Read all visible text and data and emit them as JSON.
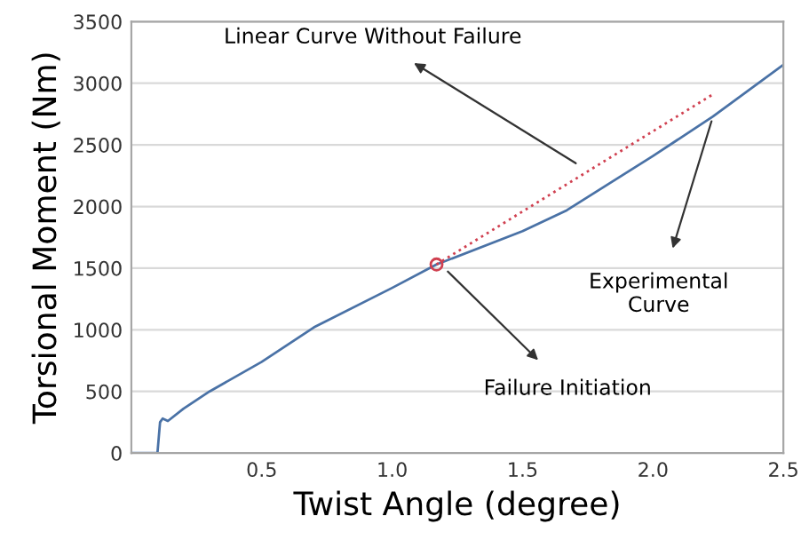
{
  "chart_data": {
    "type": "line",
    "xlabel": "Twist Angle (degree)",
    "ylabel": "Torsional Moment (Nm)",
    "xlim": [
      0,
      2.5
    ],
    "ylim": [
      0,
      3500
    ],
    "xticks": [
      {
        "value": 0,
        "label": null
      },
      0.5,
      {
        "value": 1,
        "label": "1.0"
      },
      1.5,
      {
        "value": 2,
        "label": "2.0"
      },
      2.5
    ],
    "yticks": [
      0,
      500,
      1000,
      1500,
      2000,
      2500,
      3000,
      3500
    ],
    "grid": "y",
    "legend": false,
    "series": [
      {
        "color": "#4a72a6",
        "line_style": "solid",
        "marker": "none",
        "x": [
          0,
          0.1,
          0.11,
          0.12,
          0.14,
          0.2,
          0.3,
          0.5,
          0.7,
          1.0,
          1.17,
          1.5,
          1.67,
          2.0,
          2.23,
          2.5
        ],
        "values": [
          0,
          0,
          250,
          280,
          260,
          360,
          500,
          740,
          1020,
          1340,
          1530,
          1800,
          1970,
          2410,
          2730,
          3150
        ]
      },
      {
        "color": "#d04050",
        "line_style": "dotted",
        "marker": "none",
        "x": [
          1.17,
          2.23
        ],
        "values": [
          1530,
          2910
        ]
      },
      {
        "type": "scatter",
        "color": "#d04050",
        "marker": "circle",
        "x": [
          1.17
        ],
        "values": [
          1530
        ]
      }
    ],
    "annotations": [
      {
        "text": "Linear Curve Without Failure",
        "x": 1.72,
        "y": 2330
      },
      {
        "text": "Experimental\nCurve",
        "x": 2.23,
        "y": 2730
      },
      {
        "text": "Failure Initiation",
        "x": 1.2,
        "y": 1500
      }
    ]
  }
}
